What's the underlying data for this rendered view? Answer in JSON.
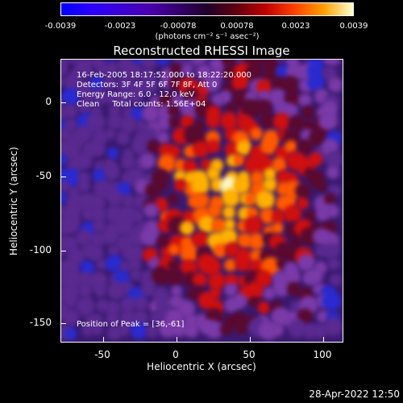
{
  "colorbar": {
    "ticks": [
      "-0.0039",
      "-0.0023",
      "-0.00078",
      "0.00078",
      "0.0023",
      "0.0039"
    ],
    "unit": "(photons cm⁻² s⁻¹ asec⁻²)"
  },
  "plot": {
    "title": "Reconstructed RHESSI Image",
    "info_lines": [
      "16-Feb-2005 18:17:52.000 to 18:22:20.000",
      "Detectors: 3F 4F 5F 6F 7F 8F, Att 0",
      "Energy Range: 6.0 - 12.0 keV",
      "Clean     Total counts: 1.56E+04"
    ],
    "peak": "Position of Peak = [36,-61]",
    "x_ticks": [
      "-50",
      "0",
      "50",
      "100"
    ],
    "y_ticks": [
      "0",
      "-50",
      "-100",
      "-150"
    ],
    "x_label": "Heliocentric X (arcsec)",
    "y_label": "Heliocentric Y (arcsec)"
  },
  "footer": {
    "timestamp": "28-Apr-2022 12:50"
  }
}
